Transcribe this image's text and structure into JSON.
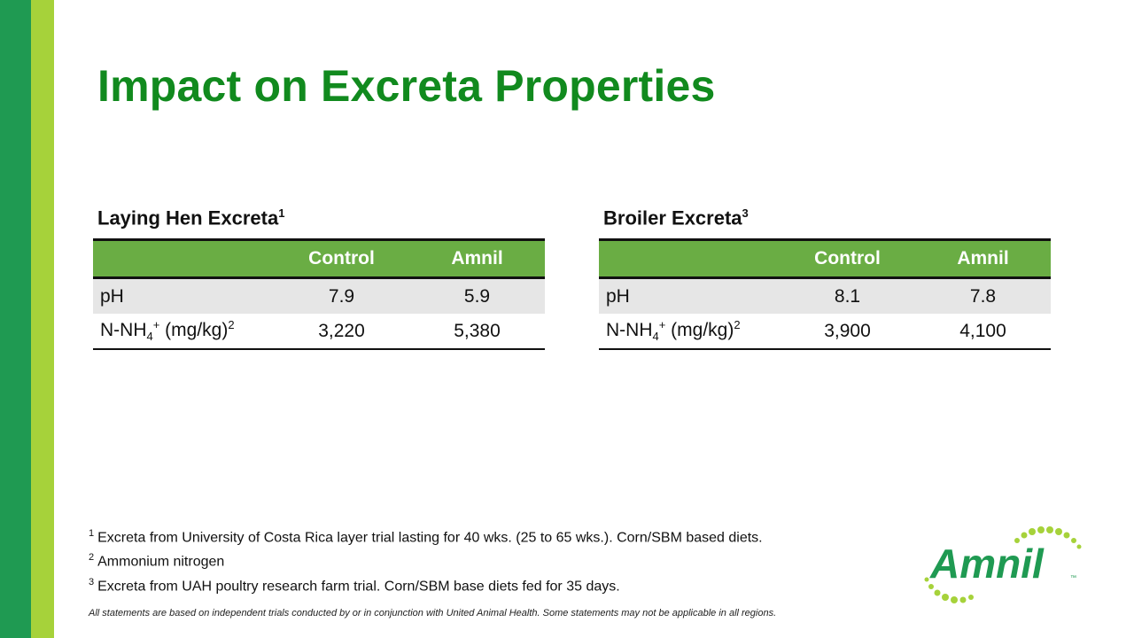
{
  "title": "Impact on Excreta Properties",
  "tables": [
    {
      "title": "Laying Hen Excreta",
      "title_sup": "1",
      "headers": [
        "",
        "Control",
        "Amnil"
      ],
      "rows": [
        {
          "label": "pH",
          "control": "7.9",
          "amnil": "5.9"
        },
        {
          "label_pre": "N-NH",
          "label_sub": "4",
          "label_sup": "+",
          "label_post": " (mg/kg)",
          "label_sup2": "2",
          "control": "3,220",
          "amnil": "5,380"
        }
      ]
    },
    {
      "title": "Broiler Excreta",
      "title_sup": "3",
      "headers": [
        "",
        "Control",
        "Amnil"
      ],
      "rows": [
        {
          "label": "pH",
          "control": "8.1",
          "amnil": "7.8"
        },
        {
          "label_pre": "N-NH",
          "label_sub": "4",
          "label_sup": "+",
          "label_post": " (mg/kg)",
          "label_sup2": "2",
          "control": "3,900",
          "amnil": "4,100"
        }
      ]
    }
  ],
  "footnotes": [
    {
      "num": "1",
      "text": "Excreta from University of Costa Rica layer trial lasting for 40 wks. (25 to 65 wks.). Corn/SBM based diets."
    },
    {
      "num": "2",
      "text": "Ammonium nitrogen"
    },
    {
      "num": "3",
      "text": "Excreta from UAH poultry research farm trial. Corn/SBM base diets fed for 35 days."
    }
  ],
  "disclaimer": "All statements are based on independent trials conducted by or in conjunction with United Animal Health. Some statements may not be applicable in all regions.",
  "logo": {
    "text": "Amnil",
    "tm": "™"
  },
  "colors": {
    "brand_dark_green": "#1f9a52",
    "brand_light_green": "#a6d23a",
    "title_green": "#118a1e",
    "header_green": "#6aad44"
  }
}
